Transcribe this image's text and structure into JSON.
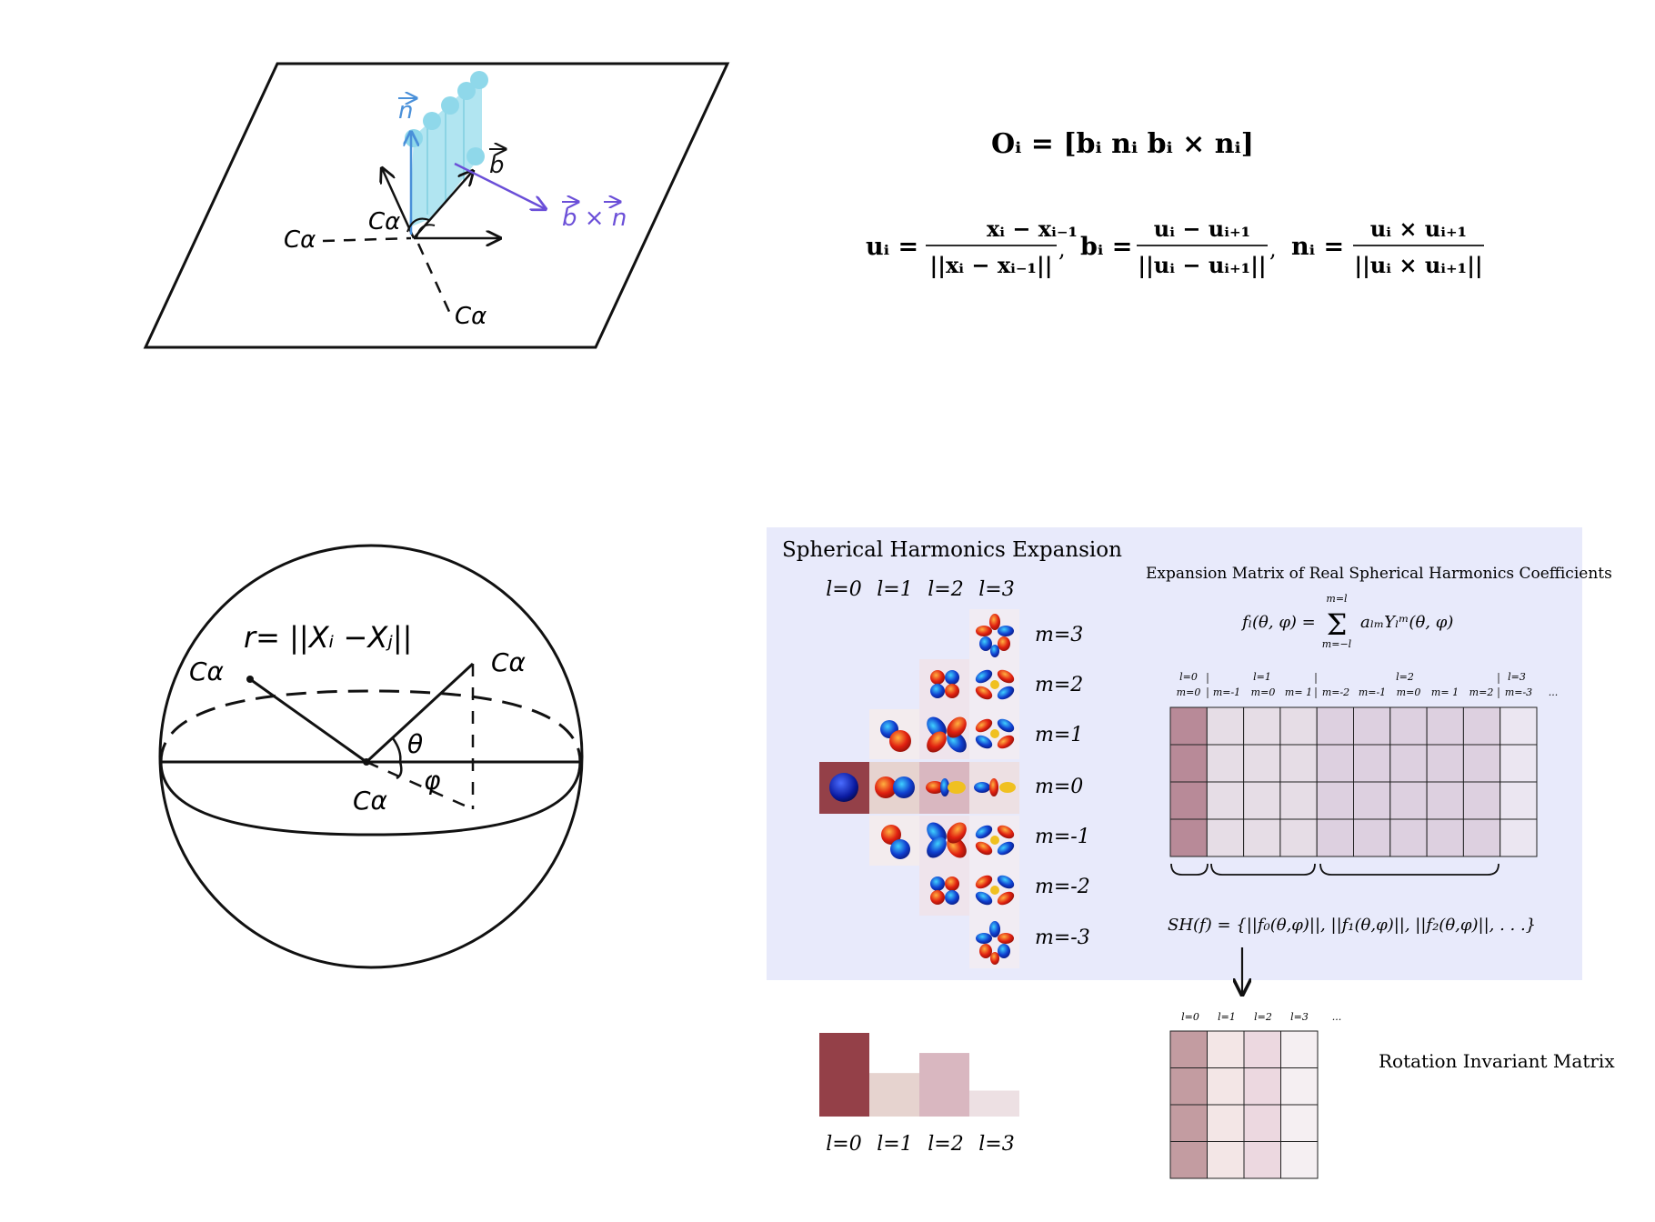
{
  "colors": {
    "panel_bg": "#e8eafb",
    "normal_blue": "#4a90d9",
    "bxn_purple": "#6b4fd8",
    "ribbon": "#a8e2ef",
    "cell_l0": "#b88a98",
    "cell_l1": "#e6dde6",
    "cell_l2": "#ddd0e0",
    "cell_l3": "#ebe6f1",
    "bar_l0": "#944048",
    "bar_l1": "#e6d3cf",
    "bar_l2": "#d9b7c0",
    "bar_l3": "#ede0e3",
    "inv_l0": "#c39ca1",
    "inv_l1": "#f3e6e6",
    "inv_l2": "#ecd8e0",
    "inv_l3": "#f5eff2"
  },
  "frame_panel": {
    "n_label": "n",
    "b_label": "b",
    "bxn_label": "b × n",
    "ca_labels": [
      "Cα",
      "Cα",
      "Cα"
    ]
  },
  "equations": {
    "frame_eq": "Oᵢ = [bᵢ  nᵢ  bᵢ × nᵢ]",
    "u_lhs": "uᵢ =",
    "u_num": "xᵢ − xᵢ₋₁",
    "u_den": "||xᵢ − xᵢ₋₁||",
    "b_lhs": "bᵢ =",
    "b_num": "uᵢ − uᵢ₊₁",
    "b_den": "||uᵢ − uᵢ₊₁||",
    "n_lhs": "nᵢ =",
    "n_num": "uᵢ × uᵢ₊₁",
    "n_den": "||uᵢ × uᵢ₊₁||",
    "comma": ","
  },
  "sphere_panel": {
    "r_label": "r= ||Xᵢ −Xⱼ||",
    "theta": "θ",
    "phi": "φ",
    "ca_left": "Cα",
    "ca_right": "Cα",
    "ca_center": "Cα"
  },
  "sh_panel": {
    "title": "Spherical Harmonics Expansion",
    "l_headers": [
      "l=0",
      "l=1",
      "l=2",
      "l=3"
    ],
    "m_labels": [
      "m=3",
      "m=2",
      "m=1",
      "m=0",
      "m=-1",
      "m=-2",
      "m=-3"
    ],
    "matrix_title": "Expansion Matrix of Real Spherical Harmonics Coefficients",
    "sum_top": "m=l",
    "sum_bottom": "m=−l",
    "formula_lhs": "fₗ(θ, φ) =",
    "formula_sigma": "Σ",
    "formula_rhs": "aₗₘYₗᵐ(θ, φ)",
    "col_l_headers": [
      "l=0",
      "l=1",
      "l=2",
      "l=3"
    ],
    "col_m_headers": [
      "m=0",
      "m=-1",
      "m=0",
      "m= 1",
      "m=-2",
      "m=-1",
      "m=0",
      "m= 1",
      "m=2",
      "m=-3"
    ],
    "col_ellipsis": "...",
    "sh_formula": "SH(f) = {||f₀(θ,φ)||, ||f₁(θ,φ)||, ||f₂(θ,φ)||, . . .}"
  },
  "bar_chart": {
    "labels": [
      "l=0",
      "l=1",
      "l=2",
      "l=3"
    ],
    "values": [
      1.0,
      0.52,
      0.76,
      0.31
    ]
  },
  "invariant": {
    "col_headers": [
      "l=0",
      "l=1",
      "l=2",
      "l=3"
    ],
    "ellipsis": "...",
    "label": "Rotation Invariant Matrix"
  }
}
